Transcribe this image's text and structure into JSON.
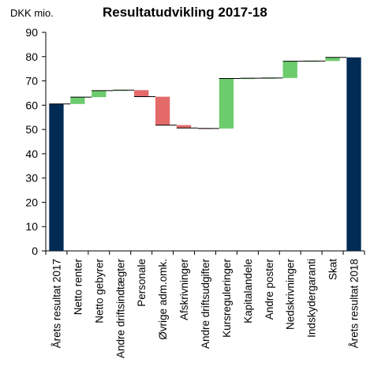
{
  "chart_data": {
    "type": "bar",
    "subtype": "waterfall",
    "title": "Resultatudvikling 2017-18",
    "ylabel": "DKK mio.",
    "ylim": [
      0,
      90
    ],
    "yticks": [
      0,
      10,
      20,
      30,
      40,
      50,
      60,
      70,
      80,
      90
    ],
    "grid": false,
    "categories": [
      "Årets resultat 2017",
      "Netto renter",
      "Netto gebyrer",
      "Andre driftsindtægter",
      "Personale",
      "Øvrige adm.omk.",
      "Afskrivninger",
      "Andre driftsudgifter",
      "Kursreguleringer",
      "Kapitalandele",
      "Andre poster",
      "Nedskrivninger",
      "Indskydergaranti",
      "Skat",
      "Årets resultat 2018"
    ],
    "bars": [
      {
        "kind": "total",
        "start": 0,
        "end": 60.5
      },
      {
        "kind": "increase",
        "start": 60.5,
        "end": 63.3
      },
      {
        "kind": "increase",
        "start": 63.3,
        "end": 66
      },
      {
        "kind": "increase",
        "start": 66,
        "end": 66.2
      },
      {
        "kind": "decrease",
        "start": 66.2,
        "end": 63.5
      },
      {
        "kind": "decrease",
        "start": 63.5,
        "end": 51.8
      },
      {
        "kind": "decrease",
        "start": 51.8,
        "end": 50.6
      },
      {
        "kind": "decrease",
        "start": 50.6,
        "end": 50.4
      },
      {
        "kind": "increase",
        "start": 50.4,
        "end": 71
      },
      {
        "kind": "increase",
        "start": 71,
        "end": 71.1
      },
      {
        "kind": "increase",
        "start": 71.1,
        "end": 71.2
      },
      {
        "kind": "increase",
        "start": 71.2,
        "end": 78.1
      },
      {
        "kind": "increase",
        "start": 78.1,
        "end": 78.2
      },
      {
        "kind": "increase",
        "start": 78.2,
        "end": 79.7
      },
      {
        "kind": "total",
        "start": 0,
        "end": 79.7
      }
    ],
    "colors": {
      "total": "#002b55",
      "increase": "#6ccb6c",
      "decrease": "#e46a6a",
      "axis": "#000000",
      "connector": "#000000"
    }
  }
}
